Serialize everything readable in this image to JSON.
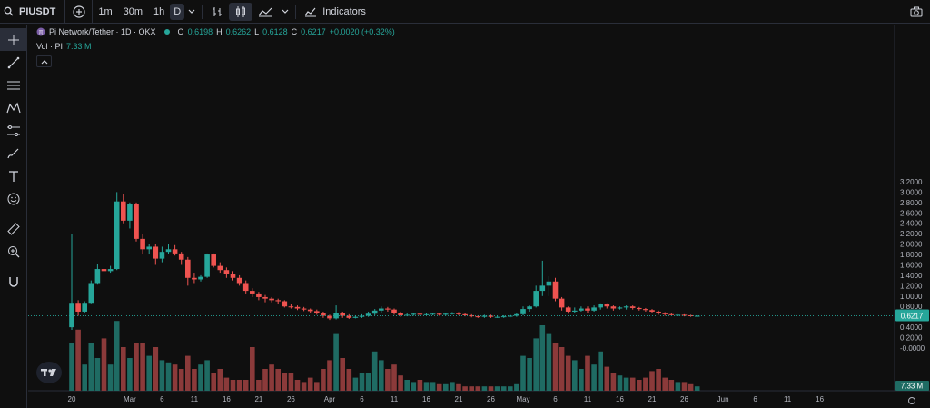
{
  "header": {
    "symbol": "PIUSDT",
    "intervals": [
      "1m",
      "30m",
      "1h",
      "D"
    ],
    "active_interval": "D",
    "indicators_label": "Indicators"
  },
  "legend": {
    "title": "Pi Network/Tether · 1D · OKX",
    "o_label": "O",
    "o": "0.6198",
    "h_label": "H",
    "h": "0.6262",
    "l_label": "L",
    "l": "0.6128",
    "c_label": "C",
    "c": "0.6217",
    "change": "+0.0020 (+0.32%)",
    "vol_label": "Vol · PI",
    "vol": "7.33 M"
  },
  "colors": {
    "up": "#26a69a",
    "down": "#ef5350",
    "up_vol": "#1f6b63",
    "down_vol": "#8b3a3a",
    "price_tag": "#26a69a"
  },
  "chart_data": {
    "type": "candlestick",
    "price_axis": [
      "3.2000",
      "3.0000",
      "2.8000",
      "2.6000",
      "2.4000",
      "2.2000",
      "2.0000",
      "1.8000",
      "1.6000",
      "1.4000",
      "1.2000",
      "1.0000",
      "0.8000",
      "0.6000",
      "0.4000",
      "0.2000",
      "-0.0000"
    ],
    "last_price": "0.6217",
    "last_volume": "7.33 M",
    "x_ticks": [
      {
        "label": "20",
        "day": 0
      },
      {
        "label": "Mar",
        "day": 9
      },
      {
        "label": "6",
        "day": 14
      },
      {
        "label": "11",
        "day": 19
      },
      {
        "label": "16",
        "day": 24
      },
      {
        "label": "21",
        "day": 29
      },
      {
        "label": "26",
        "day": 34
      },
      {
        "label": "Apr",
        "day": 40
      },
      {
        "label": "6",
        "day": 45
      },
      {
        "label": "11",
        "day": 50
      },
      {
        "label": "16",
        "day": 55
      },
      {
        "label": "21",
        "day": 60
      },
      {
        "label": "26",
        "day": 65
      },
      {
        "label": "May",
        "day": 70
      },
      {
        "label": "6",
        "day": 75
      },
      {
        "label": "11",
        "day": 80
      },
      {
        "label": "16",
        "day": 85
      },
      {
        "label": "21",
        "day": 90
      },
      {
        "label": "26",
        "day": 95
      },
      {
        "label": "Jun",
        "day": 101
      },
      {
        "label": "6",
        "day": 106
      },
      {
        "label": "11",
        "day": 111
      },
      {
        "label": "16",
        "day": 116
      }
    ],
    "candles": [
      [
        0.4,
        0.87,
        2.2,
        0.35
      ],
      [
        0.87,
        0.7,
        0.92,
        0.62
      ],
      [
        0.7,
        0.87,
        0.9,
        0.68
      ],
      [
        0.87,
        1.25,
        1.3,
        0.86
      ],
      [
        1.25,
        1.52,
        1.62,
        1.22
      ],
      [
        1.52,
        1.48,
        1.58,
        1.42
      ],
      [
        1.48,
        1.52,
        1.58,
        1.45
      ],
      [
        1.52,
        2.82,
        3.0,
        1.5
      ],
      [
        2.82,
        2.45,
        2.97,
        2.4
      ],
      [
        2.45,
        2.78,
        2.8,
        2.3
      ],
      [
        2.78,
        2.1,
        2.8,
        2.05
      ],
      [
        2.1,
        1.9,
        2.2,
        1.8
      ],
      [
        1.9,
        1.95,
        2.0,
        1.8
      ],
      [
        1.95,
        1.72,
        2.0,
        1.6
      ],
      [
        1.72,
        1.85,
        1.95,
        1.65
      ],
      [
        1.85,
        1.9,
        2.0,
        1.8
      ],
      [
        1.9,
        1.82,
        1.98,
        1.78
      ],
      [
        1.82,
        1.7,
        1.85,
        1.6
      ],
      [
        1.7,
        1.35,
        1.75,
        1.2
      ],
      [
        1.35,
        1.32,
        1.45,
        1.25
      ],
      [
        1.32,
        1.37,
        1.4,
        1.28
      ],
      [
        1.37,
        1.8,
        1.82,
        1.35
      ],
      [
        1.8,
        1.58,
        1.82,
        1.55
      ],
      [
        1.58,
        1.5,
        1.65,
        1.45
      ],
      [
        1.5,
        1.42,
        1.55,
        1.35
      ],
      [
        1.42,
        1.35,
        1.48,
        1.3
      ],
      [
        1.35,
        1.25,
        1.4,
        1.2
      ],
      [
        1.25,
        1.1,
        1.3,
        1.05
      ],
      [
        1.1,
        1.05,
        1.15,
        0.98
      ],
      [
        1.05,
        0.98,
        1.08,
        0.92
      ],
      [
        0.98,
        0.95,
        1.02,
        0.88
      ],
      [
        0.95,
        0.92,
        0.98,
        0.88
      ],
      [
        0.92,
        0.9,
        0.95,
        0.85
      ],
      [
        0.9,
        0.8,
        0.92,
        0.78
      ],
      [
        0.8,
        0.79,
        0.85,
        0.76
      ],
      [
        0.79,
        0.76,
        0.82,
        0.73
      ],
      [
        0.76,
        0.74,
        0.79,
        0.71
      ],
      [
        0.74,
        0.71,
        0.76,
        0.68
      ],
      [
        0.71,
        0.68,
        0.74,
        0.64
      ],
      [
        0.68,
        0.62,
        0.7,
        0.58
      ],
      [
        0.62,
        0.57,
        0.64,
        0.54
      ],
      [
        0.57,
        0.68,
        0.82,
        0.55
      ],
      [
        0.68,
        0.62,
        0.7,
        0.58
      ],
      [
        0.62,
        0.58,
        0.65,
        0.56
      ],
      [
        0.58,
        0.6,
        0.63,
        0.57
      ],
      [
        0.6,
        0.62,
        0.65,
        0.58
      ],
      [
        0.62,
        0.66,
        0.7,
        0.6
      ],
      [
        0.66,
        0.72,
        0.75,
        0.63
      ],
      [
        0.72,
        0.76,
        0.8,
        0.68
      ],
      [
        0.76,
        0.74,
        0.79,
        0.7
      ],
      [
        0.74,
        0.67,
        0.76,
        0.64
      ],
      [
        0.67,
        0.63,
        0.7,
        0.6
      ],
      [
        0.63,
        0.64,
        0.67,
        0.61
      ],
      [
        0.64,
        0.66,
        0.68,
        0.62
      ],
      [
        0.66,
        0.64,
        0.68,
        0.62
      ],
      [
        0.64,
        0.65,
        0.67,
        0.62
      ],
      [
        0.65,
        0.66,
        0.68,
        0.63
      ],
      [
        0.66,
        0.64,
        0.68,
        0.62
      ],
      [
        0.64,
        0.66,
        0.68,
        0.62
      ],
      [
        0.66,
        0.67,
        0.69,
        0.64
      ],
      [
        0.67,
        0.65,
        0.69,
        0.63
      ],
      [
        0.65,
        0.63,
        0.67,
        0.61
      ],
      [
        0.63,
        0.61,
        0.65,
        0.59
      ],
      [
        0.61,
        0.6,
        0.63,
        0.58
      ],
      [
        0.6,
        0.62,
        0.64,
        0.58
      ],
      [
        0.62,
        0.6,
        0.64,
        0.58
      ],
      [
        0.6,
        0.6,
        0.62,
        0.58
      ],
      [
        0.6,
        0.61,
        0.63,
        0.58
      ],
      [
        0.61,
        0.62,
        0.64,
        0.59
      ],
      [
        0.62,
        0.65,
        0.68,
        0.6
      ],
      [
        0.65,
        0.75,
        0.8,
        0.63
      ],
      [
        0.75,
        0.8,
        0.82,
        0.7
      ],
      [
        0.8,
        1.1,
        1.2,
        0.78
      ],
      [
        1.1,
        1.2,
        1.68,
        1.0
      ],
      [
        1.2,
        1.28,
        1.38,
        1.0
      ],
      [
        1.28,
        0.95,
        1.35,
        0.9
      ],
      [
        0.95,
        0.78,
        0.98,
        0.72
      ],
      [
        0.78,
        0.7,
        0.8,
        0.66
      ],
      [
        0.7,
        0.72,
        0.78,
        0.68
      ],
      [
        0.72,
        0.76,
        0.8,
        0.7
      ],
      [
        0.76,
        0.72,
        0.8,
        0.68
      ],
      [
        0.72,
        0.78,
        0.82,
        0.7
      ],
      [
        0.78,
        0.84,
        0.86,
        0.74
      ],
      [
        0.84,
        0.8,
        0.86,
        0.76
      ],
      [
        0.8,
        0.76,
        0.82,
        0.72
      ],
      [
        0.76,
        0.78,
        0.8,
        0.74
      ],
      [
        0.78,
        0.8,
        0.82,
        0.74
      ],
      [
        0.8,
        0.77,
        0.82,
        0.74
      ],
      [
        0.77,
        0.75,
        0.79,
        0.72
      ],
      [
        0.75,
        0.73,
        0.77,
        0.7
      ],
      [
        0.73,
        0.7,
        0.75,
        0.67
      ],
      [
        0.7,
        0.67,
        0.72,
        0.64
      ],
      [
        0.67,
        0.65,
        0.69,
        0.62
      ],
      [
        0.65,
        0.64,
        0.67,
        0.62
      ],
      [
        0.64,
        0.64,
        0.66,
        0.62
      ],
      [
        0.64,
        0.63,
        0.65,
        0.61
      ],
      [
        0.63,
        0.62,
        0.64,
        0.6
      ],
      [
        0.62,
        0.62,
        0.63,
        0.61
      ]
    ],
    "volumes": [
      0.22,
      0.28,
      0.12,
      0.22,
      0.15,
      0.24,
      0.12,
      0.32,
      0.2,
      0.15,
      0.22,
      0.22,
      0.16,
      0.2,
      0.14,
      0.13,
      0.12,
      0.1,
      0.16,
      0.1,
      0.12,
      0.14,
      0.08,
      0.1,
      0.06,
      0.05,
      0.05,
      0.05,
      0.2,
      0.05,
      0.1,
      0.12,
      0.1,
      0.08,
      0.08,
      0.05,
      0.04,
      0.06,
      0.04,
      0.1,
      0.14,
      0.26,
      0.15,
      0.1,
      0.06,
      0.08,
      0.08,
      0.18,
      0.14,
      0.1,
      0.12,
      0.07,
      0.05,
      0.04,
      0.05,
      0.04,
      0.04,
      0.03,
      0.03,
      0.04,
      0.03,
      0.02,
      0.02,
      0.02,
      0.02,
      0.02,
      0.02,
      0.02,
      0.02,
      0.03,
      0.16,
      0.15,
      0.24,
      0.3,
      0.26,
      0.22,
      0.2,
      0.16,
      0.14,
      0.1,
      0.16,
      0.12,
      0.18,
      0.11,
      0.08,
      0.07,
      0.06,
      0.06,
      0.05,
      0.06,
      0.09,
      0.1,
      0.06,
      0.05,
      0.04,
      0.04,
      0.03,
      0.02
    ]
  }
}
